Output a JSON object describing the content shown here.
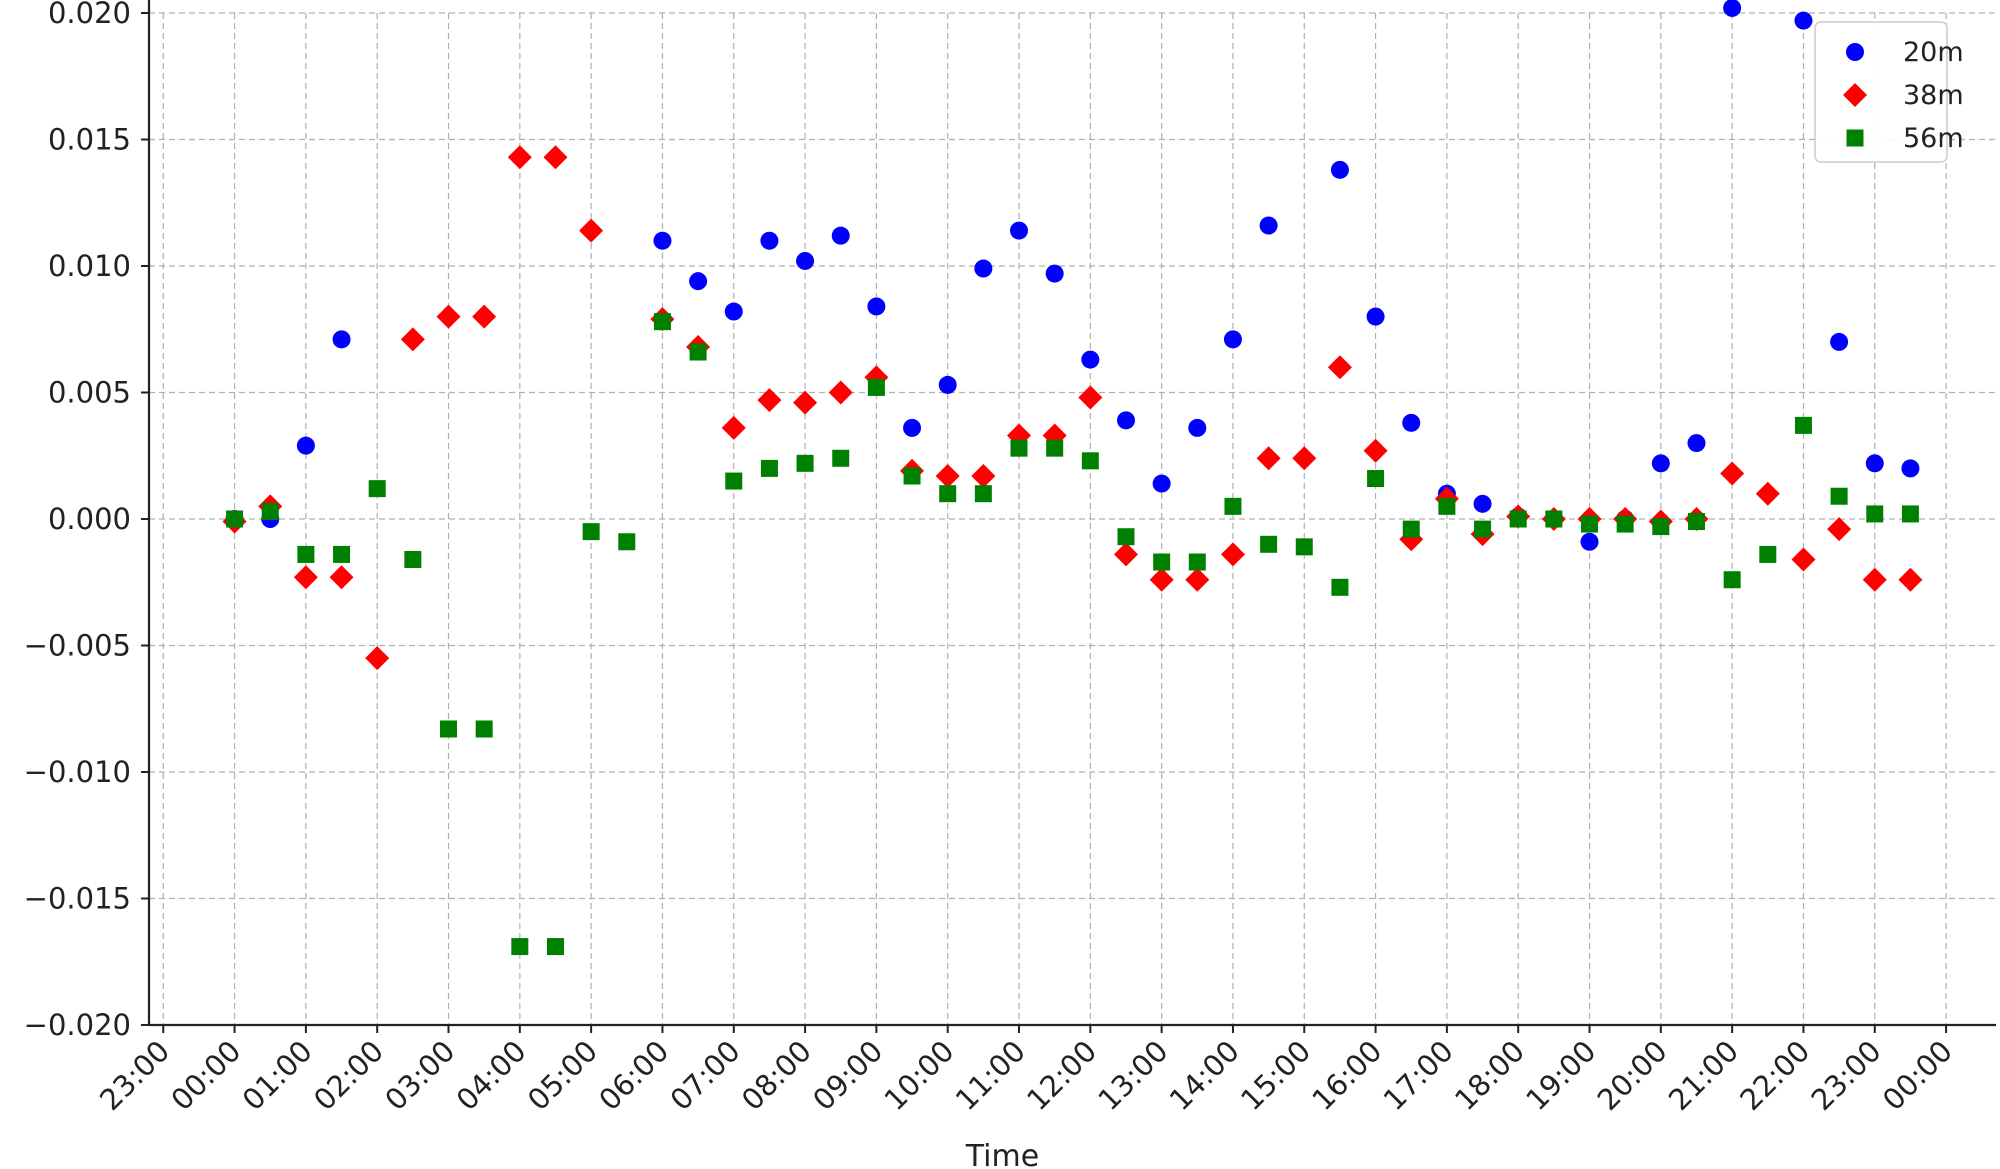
{
  "chart_data": {
    "type": "scatter",
    "xlabel": "Time",
    "ylabel": "",
    "title": "",
    "x_ticks": [
      "23:00",
      "00:00",
      "01:00",
      "02:00",
      "03:00",
      "04:00",
      "05:00",
      "06:00",
      "07:00",
      "08:00",
      "09:00",
      "10:00",
      "11:00",
      "12:00",
      "13:00",
      "14:00",
      "15:00",
      "16:00",
      "17:00",
      "18:00",
      "19:00",
      "20:00",
      "21:00",
      "22:00",
      "23:00",
      "00:00"
    ],
    "x_range_hours": [
      -1.2,
      24.7
    ],
    "ylim": [
      -0.02,
      0.02
    ],
    "y_ticks": [
      "0.020",
      "0.015",
      "0.010",
      "0.005",
      "0.000",
      "−0.005",
      "−0.010",
      "−0.015",
      "−0.020"
    ],
    "y_tick_values": [
      0.02,
      0.015,
      0.01,
      0.005,
      0.0,
      -0.005,
      -0.01,
      -0.015,
      -0.02
    ],
    "grid": true,
    "legend_position": "top-right",
    "x_hours": [
      0,
      0.5,
      1,
      1.5,
      2,
      2.5,
      3,
      3.5,
      4,
      4.5,
      5,
      5.5,
      6,
      6.5,
      7,
      7.5,
      8,
      8.5,
      9,
      9.5,
      10,
      10.5,
      11,
      11.5,
      12,
      12.5,
      13,
      13.5,
      14,
      14.5,
      15,
      15.5,
      16,
      16.5,
      17,
      17.5,
      18,
      18.5,
      19,
      19.5,
      20,
      20.5,
      21,
      21.5,
      22,
      22.5,
      23,
      23.5
    ],
    "series": [
      {
        "name": "20m",
        "color": "#0000ff",
        "marker": "circle",
        "values": [
          0.0,
          0.0,
          0.0029,
          0.0071,
          null,
          null,
          null,
          null,
          null,
          null,
          null,
          null,
          0.011,
          0.0094,
          0.0082,
          0.011,
          0.0102,
          0.0112,
          0.0084,
          0.0036,
          0.0053,
          0.0099,
          0.0114,
          0.0097,
          0.0063,
          0.0039,
          0.0014,
          0.0036,
          0.0071,
          0.0116,
          null,
          0.0138,
          0.008,
          0.0038,
          0.001,
          0.0006,
          0.0001,
          0.0,
          -0.0009,
          0.0,
          0.0022,
          0.003,
          0.0202,
          null,
          0.0197,
          0.007,
          0.0022,
          0.002
        ]
      },
      {
        "name": "38m",
        "color": "#ff0000",
        "marker": "diamond",
        "values": [
          -0.0001,
          0.0005,
          -0.0023,
          -0.0023,
          -0.0055,
          0.0071,
          0.008,
          0.008,
          0.0143,
          0.0143,
          0.0114,
          null,
          0.0079,
          0.0068,
          0.0036,
          0.0047,
          0.0046,
          0.005,
          0.0056,
          0.0019,
          0.0017,
          0.0017,
          0.0033,
          0.0033,
          0.0048,
          -0.0014,
          -0.0024,
          -0.0024,
          -0.0014,
          0.0024,
          0.0024,
          0.006,
          0.0027,
          -0.0008,
          0.0008,
          -0.0006,
          0.0001,
          0.0,
          0.0,
          0.0,
          -0.0001,
          0.0,
          0.0018,
          0.001,
          -0.0016,
          -0.0004,
          -0.0024,
          -0.0024
        ]
      },
      {
        "name": "56m",
        "color": "#008000",
        "marker": "square",
        "values": [
          0.0,
          0.0003,
          -0.0014,
          -0.0014,
          0.0012,
          -0.0016,
          -0.0083,
          -0.0083,
          -0.0169,
          -0.0169,
          -0.0005,
          -0.0009,
          0.0078,
          0.0066,
          0.0015,
          0.002,
          0.0022,
          0.0024,
          0.0052,
          0.0017,
          0.001,
          0.001,
          0.0028,
          0.0028,
          0.0023,
          -0.0007,
          -0.0017,
          -0.0017,
          0.0005,
          -0.001,
          -0.0011,
          -0.0027,
          0.0016,
          -0.0004,
          0.0005,
          -0.0004,
          0.0,
          0.0,
          -0.0002,
          -0.0002,
          -0.0003,
          -0.0001,
          -0.0024,
          -0.0014,
          0.0037,
          0.0009,
          0.0002,
          0.0002
        ]
      }
    ]
  }
}
